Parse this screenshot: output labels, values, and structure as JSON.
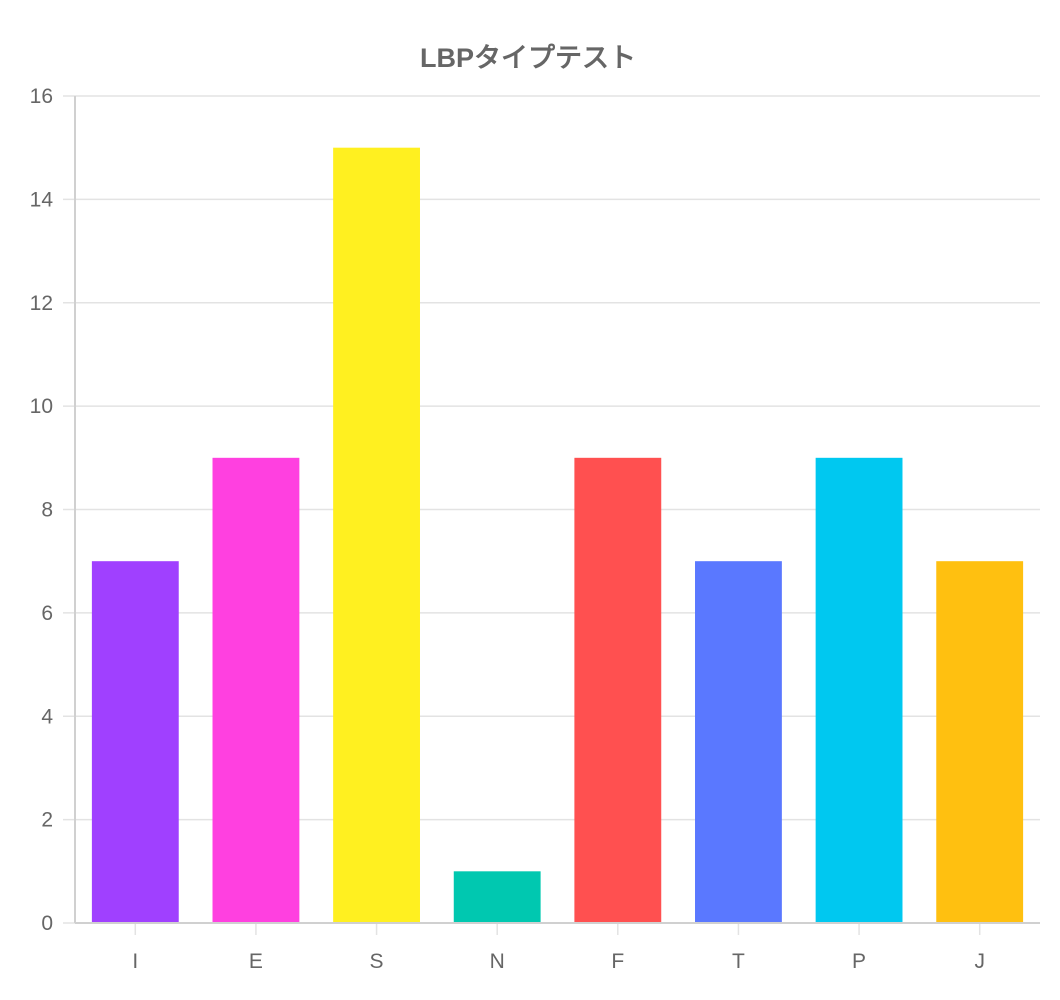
{
  "chart_data": {
    "type": "bar",
    "title": "LBPタイプテスト",
    "categories": [
      "I",
      "E",
      "S",
      "N",
      "F",
      "T",
      "P",
      "J"
    ],
    "values": [
      7,
      9,
      15,
      1,
      9,
      7,
      9,
      7
    ],
    "colors": [
      "#a040ff",
      "#ff40e0",
      "#fff020",
      "#00c8b0",
      "#ff5050",
      "#5a78ff",
      "#00c8f0",
      "#ffc010"
    ],
    "ylim": [
      0,
      16
    ],
    "yticks": [
      0,
      2,
      4,
      6,
      8,
      10,
      12,
      14,
      16
    ],
    "grid": true,
    "legend": "none"
  }
}
